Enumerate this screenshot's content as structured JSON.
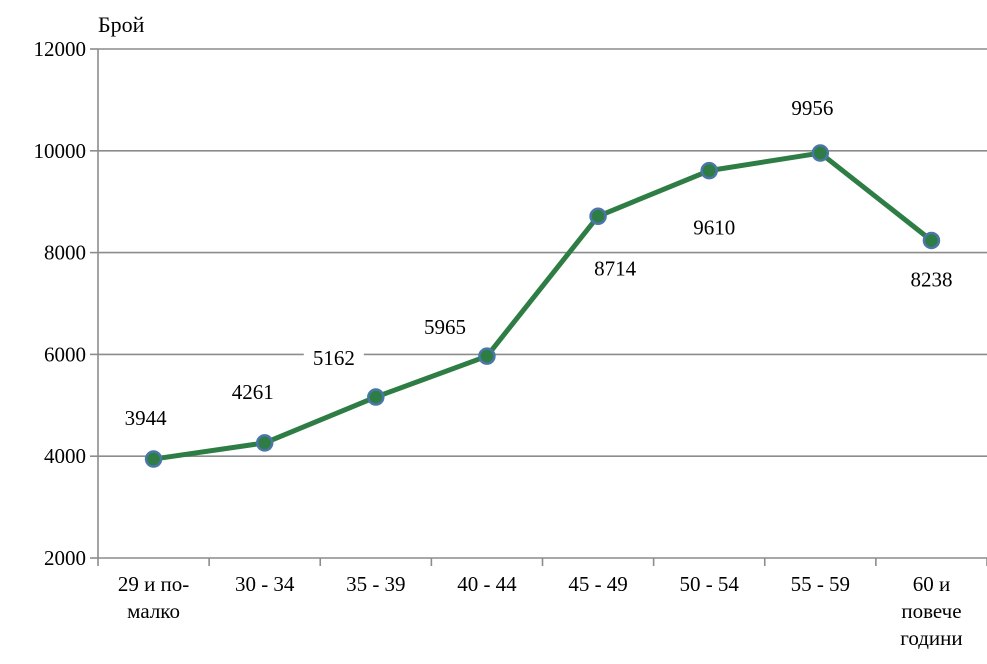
{
  "chart_data": {
    "type": "line",
    "ylabel": "Брой",
    "ylim": [
      2000,
      12000
    ],
    "yticks": [
      2000,
      4000,
      6000,
      8000,
      10000,
      12000
    ],
    "grid": true,
    "categories": [
      [
        "29 и по-",
        "малко"
      ],
      [
        "30 - 34"
      ],
      [
        "35 - 39"
      ],
      [
        "40 - 44"
      ],
      [
        "45 - 49"
      ],
      [
        "50 - 54"
      ],
      [
        "55 - 59"
      ],
      [
        "60 и",
        "повече",
        "години"
      ]
    ],
    "series": [
      {
        "values": [
          3944,
          4261,
          5162,
          5965,
          8714,
          9610,
          9956,
          8238
        ],
        "labels": [
          "3944",
          "4261",
          "5162",
          "5965",
          "8714",
          "9610",
          "9956",
          "8238"
        ],
        "color": "#2e7d44",
        "marker_color": "#4a76a8"
      }
    ]
  }
}
